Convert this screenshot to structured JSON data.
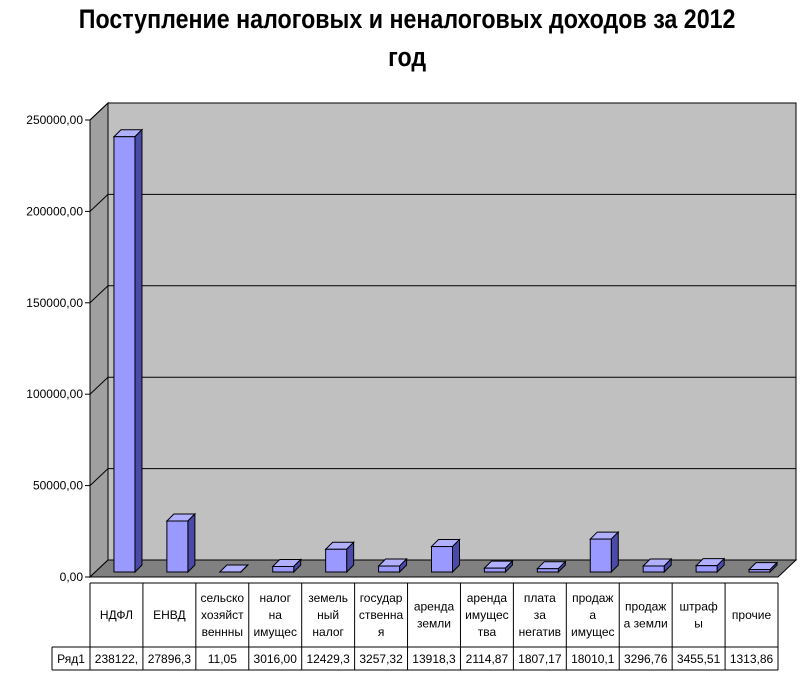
{
  "chart_data": {
    "type": "bar",
    "title": "Поступление налоговых и неналоговых доходов за 2012 год",
    "xlabel": "",
    "ylabel": "",
    "ylim": [
      0,
      250000
    ],
    "yticks": [
      "0,00",
      "50000,00",
      "100000,00",
      "150000,00",
      "200000,00",
      "250000,00"
    ],
    "grid": true,
    "legend": "none",
    "bar_color": "#9999ff",
    "wall_color": "#c0c0c0",
    "categories": [
      [
        "НДФЛ"
      ],
      [
        "ЕНВД"
      ],
      [
        "сельско",
        "хозяйст",
        "веннны"
      ],
      [
        "налог",
        "на",
        "имущес"
      ],
      [
        "земель",
        "ный",
        "налог"
      ],
      [
        "государ",
        "ственна",
        "я"
      ],
      [
        "аренда",
        "земли"
      ],
      [
        "аренда",
        "имущес",
        "тва"
      ],
      [
        "плата",
        "за",
        "негатив"
      ],
      [
        "продаж",
        "а",
        "имущес"
      ],
      [
        "продаж",
        "а земли"
      ],
      [
        "штраф",
        "ы"
      ],
      [
        "прочие"
      ]
    ],
    "series": [
      {
        "name": "Ряд1",
        "values": [
          238122,
          27896.3,
          11.05,
          3016,
          12429.3,
          3257.32,
          13918.3,
          2114.87,
          1807.17,
          18010.1,
          3296.76,
          3455.51,
          1313.86
        ],
        "labels": [
          "238122,",
          "27896,3",
          "11,05",
          "3016,00",
          "12429,3",
          "3257,32",
          "13918,3",
          "2114,87",
          "1807,17",
          "18010,1",
          "3296,76",
          "3455,51",
          "1313,86"
        ]
      }
    ]
  }
}
